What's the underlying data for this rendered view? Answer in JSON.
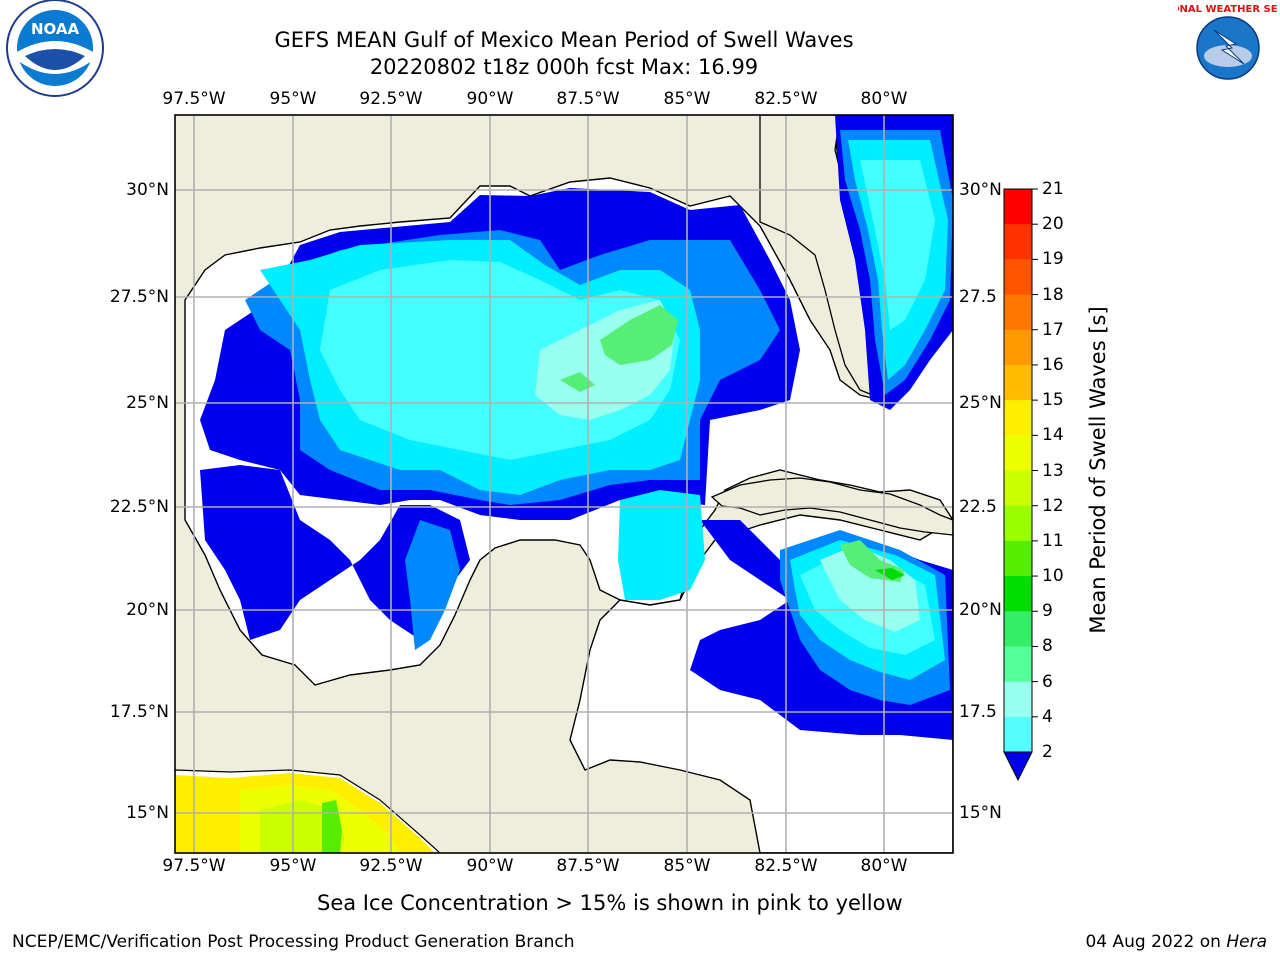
{
  "title_line1": "GEFS MEAN Gulf of Mexico Mean Period of Swell Waves",
  "title_line2": "20220802 t18z 000h fcst   Max: 16.99",
  "logos": {
    "noaa_text": "NOAA",
    "nws_text": "NATIONAL WEATHER SERVICE"
  },
  "lon_ticks": [
    "97.5°W",
    "95°W",
    "92.5°W",
    "90°W",
    "87.5°W",
    "85°W",
    "82.5°W",
    "80°W"
  ],
  "lat_ticks_left": [
    "30°N",
    "27.5°N",
    "25°N",
    "22.5°N",
    "20°N",
    "17.5°N",
    "15°N"
  ],
  "lat_ticks_right": [
    "30°N",
    "27.5",
    "25°N",
    "22.5",
    "20°N",
    "17.5",
    "15°N"
  ],
  "colorbar": {
    "title": "Mean Period of Swell Waves [s]",
    "labels": [
      "21",
      "20",
      "19",
      "18",
      "17",
      "16",
      "15",
      "14",
      "13",
      "12",
      "11",
      "10",
      "9",
      "8",
      "6",
      "4",
      "2"
    ],
    "colors": [
      "#ff0000",
      "#ff3300",
      "#ff5500",
      "#ff7700",
      "#ff9900",
      "#ffbb00",
      "#ffee00",
      "#eeff00",
      "#ccff00",
      "#99ff00",
      "#55ee00",
      "#00dd00",
      "#33ee66",
      "#55ff99",
      "#99ffee",
      "#55ffff",
      "#00eeff",
      "#0088ff",
      "#0000ee"
    ]
  },
  "map": {
    "land_color": "#efeedc",
    "ocean_color": "#ffffff",
    "grid_color": "#b0b0b0",
    "field_colors": {
      "lt2": "#0000ee",
      "c2_4": "#0088ff",
      "c4_6": "#00eeff",
      "c6_8": "#44ffff",
      "c8_9": "#99ffee",
      "c9_10": "#55ee77",
      "c10_11": "#00dd00",
      "c14_15": "#eeff00",
      "c15_16": "#ffee00"
    }
  },
  "note": "Sea Ice Concentration > 15% is shown in pink to yellow",
  "footer_left": "NCEP/EMC/Verification Post Processing Product Generation Branch",
  "footer_date": "04 Aug 2022 on ",
  "footer_machine": "Hera"
}
